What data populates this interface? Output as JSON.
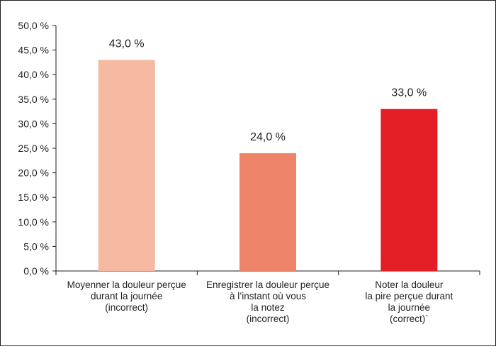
{
  "chart_data": {
    "type": "bar",
    "title": "",
    "xlabel": "",
    "ylabel": "",
    "ylim": [
      0,
      50
    ],
    "yticks": [
      0,
      5,
      10,
      15,
      20,
      25,
      30,
      35,
      40,
      45,
      50
    ],
    "ytick_labels": [
      "0,0 %",
      "5,0 %",
      "10,0 %",
      "15,0 %",
      "20,0 %",
      "25,0 %",
      "30,0 %",
      "35,0 %",
      "40,0 %",
      "45,0 %",
      "50,0 %"
    ],
    "categories": [
      [
        "Moyenner la douleur perçue",
        "durant la journée",
        "(incorrect)"
      ],
      [
        "Enregistrer la douleur perçue",
        "à l’instant où vous",
        "la notez",
        "(incorrect)"
      ],
      [
        "Noter la douleur",
        "la pire perçue durant",
        "la journée",
        "(correct)`"
      ]
    ],
    "values": [
      43.0,
      24.0,
      33.0
    ],
    "value_labels": [
      "43,0 %",
      "24,0 %",
      "33,0 %"
    ],
    "bar_colors": [
      "#f5b9a2",
      "#ee8468",
      "#e31e25"
    ],
    "grid": false,
    "legend": "none"
  }
}
